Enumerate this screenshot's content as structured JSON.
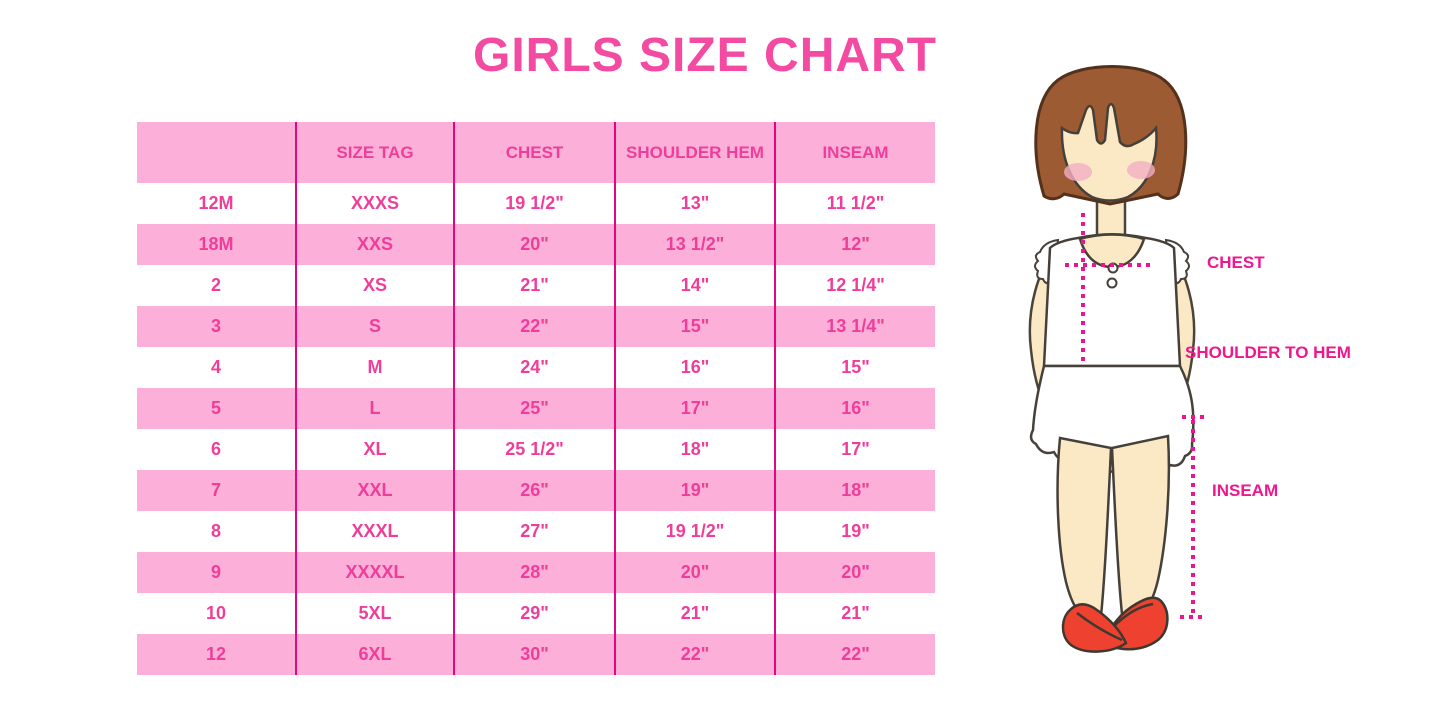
{
  "page": {
    "title": "GIRLS SIZE CHART"
  },
  "colors": {
    "title_pink": "#F44BA2",
    "row_band_pink": "#FBAFD9",
    "table_text_pink": "#EF3E9A",
    "grid_line_magenta": "#E3077E",
    "label_magenta": "#F0168E",
    "dotted_line_magenta": "#EC1590",
    "hair_brown": "#9C5B33",
    "skin": "#FBE8C5",
    "blush": "#F4AFC3",
    "shoe_red": "#EE4130"
  },
  "chart_data": {
    "type": "table",
    "title": "GIRLS SIZE CHART",
    "units": "inches",
    "columns": [
      "",
      "SIZE TAG",
      "CHEST",
      "SHOULDER HEM",
      "INSEAM"
    ],
    "rows": [
      [
        "12M",
        "XXXS",
        "19 1/2\"",
        "13\"",
        "11 1/2\""
      ],
      [
        "18M",
        "XXS",
        "20\"",
        "13 1/2\"",
        "12\""
      ],
      [
        "2",
        "XS",
        "21\"",
        "14\"",
        "12 1/4\""
      ],
      [
        "3",
        "S",
        "22\"",
        "15\"",
        "13 1/4\""
      ],
      [
        "4",
        "M",
        "24\"",
        "16\"",
        "15\""
      ],
      [
        "5",
        "L",
        "25\"",
        "17\"",
        "16\""
      ],
      [
        "6",
        "XL",
        "25 1/2\"",
        "18\"",
        "17\""
      ],
      [
        "7",
        "XXL",
        "26\"",
        "19\"",
        "18\""
      ],
      [
        "8",
        "XXXL",
        "27\"",
        "19 1/2\"",
        "19\""
      ],
      [
        "9",
        "XXXXL",
        "28\"",
        "20\"",
        "20\""
      ],
      [
        "10",
        "5XL",
        "29\"",
        "21\"",
        "21\""
      ],
      [
        "12",
        "6XL",
        "30\"",
        "22\"",
        "22\""
      ]
    ],
    "layout_hints": {
      "header_band": "pink",
      "row_shading": "alternating white/pink starting with white",
      "column_separators": "magenta vertical lines"
    }
  },
  "figure_labels": {
    "chest": "CHEST",
    "shoulder_to_hem": "SHOULDER TO HEM",
    "inseam": "INSEAM"
  }
}
